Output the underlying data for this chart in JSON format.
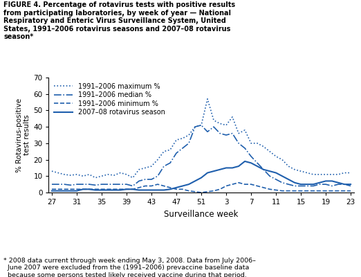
{
  "title_line1": "FIGURE 4. Percentage of rotavirus tests with positive results",
  "title_line2": "from participating laboratories, by week of year — National",
  "title_line3": "Respiratory and Enteric Virus Surveillance System, United",
  "title_line4": "States, 1991–2006 rotavirus seasons and 2007–08 rotavirus",
  "title_line5": "season*",
  "xlabel": "Surveillance week",
  "ylabel": "% Rotavirus-positive\ntest results",
  "ylim": [
    0,
    70
  ],
  "yticks": [
    0,
    10,
    20,
    30,
    40,
    50,
    60,
    70
  ],
  "xtick_labels": [
    "27",
    "31",
    "35",
    "39",
    "43",
    "47",
    "51",
    "3",
    "7",
    "11",
    "15",
    "19",
    "23"
  ],
  "xtick_pos": [
    0,
    4,
    8,
    12,
    16,
    20,
    24,
    28,
    32,
    36,
    40,
    44,
    48
  ],
  "line_color": "#1F5FAD",
  "footnote1": "* 2008 data current through week ending May 3, 2008. Data from July 2006–",
  "footnote2": "  June 2007 were excluded from the (1991–2006) prevaccine baseline data",
  "footnote3": "  because some persons tested likely received vaccine during that period.",
  "max_data": [
    13,
    12,
    11,
    10.5,
    11,
    10,
    11,
    9,
    10,
    11,
    10.5,
    12,
    11,
    9,
    14,
    15,
    16,
    20,
    25,
    26,
    32,
    33,
    35,
    40,
    41,
    57,
    44,
    42,
    41,
    46,
    36,
    38,
    30,
    30,
    28,
    25,
    22,
    20,
    16,
    14,
    13,
    12,
    11,
    11,
    11,
    11,
    11,
    12,
    12
  ],
  "median_data": [
    5,
    5,
    5,
    4.5,
    5,
    5,
    5,
    4.5,
    5,
    5,
    5,
    5,
    5,
    4,
    7,
    8,
    8,
    10,
    16,
    18,
    24,
    27,
    30,
    40,
    41,
    37,
    40,
    36,
    35,
    36,
    30,
    27,
    22,
    18,
    14,
    10,
    8,
    6,
    5,
    4,
    4,
    4,
    4,
    5,
    5,
    4,
    5,
    5,
    4
  ],
  "min_data": [
    2,
    2,
    2,
    2,
    2,
    2,
    2,
    2,
    2,
    2,
    2,
    2,
    2,
    2,
    3,
    4,
    4,
    5,
    4,
    3,
    2,
    2,
    1,
    0.5,
    0,
    0.5,
    1,
    2,
    4,
    5,
    6,
    5,
    5,
    4,
    3,
    2,
    1.5,
    1,
    1,
    1,
    1,
    1,
    1,
    1,
    1,
    1,
    1,
    1,
    1
  ],
  "season0708_data": [
    1,
    1,
    1,
    1,
    1,
    2,
    2,
    1.5,
    1.5,
    1.5,
    1.5,
    1.5,
    2,
    2,
    1.5,
    1.5,
    1.5,
    1.5,
    1.5,
    2,
    3,
    4,
    5,
    7,
    9,
    12,
    13,
    14,
    15,
    15,
    16,
    19,
    18,
    16,
    14,
    13,
    12,
    10,
    8,
    6,
    5,
    5,
    5,
    6,
    7,
    7,
    6,
    5,
    5
  ]
}
